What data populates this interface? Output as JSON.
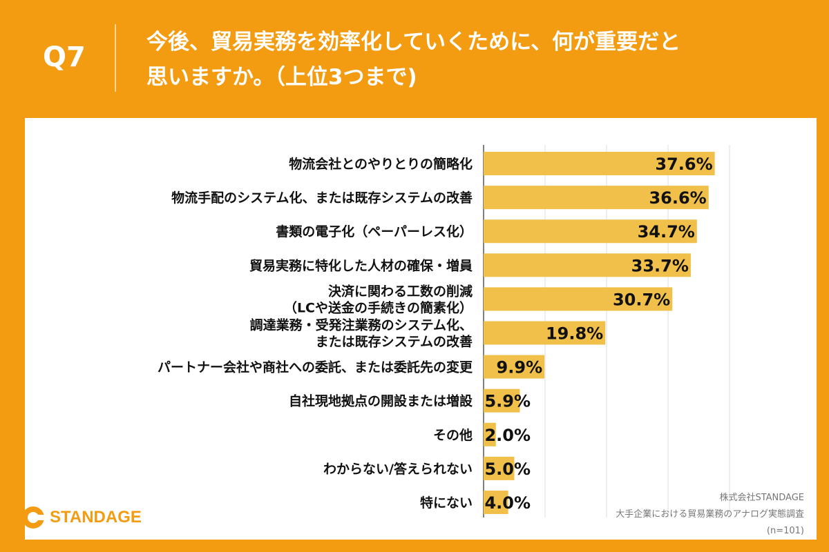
{
  "header": {
    "question_number": "Q7",
    "question_line1": "今後、貿易実務を効率化していくために、何が重要だと",
    "question_line2": "思いますか。（上位3つまで)"
  },
  "chart_data": {
    "type": "bar",
    "orientation": "horizontal",
    "categories": [
      [
        "物流会社とのやりとりの簡略化"
      ],
      [
        "物流手配のシステム化、または既存システムの改善"
      ],
      [
        "書類の電子化（ペーパーレス化）"
      ],
      [
        "貿易実務に特化した人材の確保・増員"
      ],
      [
        "決済に関わる工数の削減",
        "（LCや送金の手続きの簡素化）"
      ],
      [
        "調達業務・受発注業務のシステム化、",
        "または既存システムの改善"
      ],
      [
        "パートナー会社や商社への委託、または委託先の変更"
      ],
      [
        "自社現地拠点の開設または増設"
      ],
      [
        "その他"
      ],
      [
        "わからない/答えられない"
      ],
      [
        "特にない"
      ]
    ],
    "values": [
      37.6,
      36.6,
      34.7,
      33.7,
      30.7,
      19.8,
      9.9,
      5.9,
      2.0,
      5.0,
      4.0
    ],
    "value_labels": [
      "37.6%",
      "36.6%",
      "34.7%",
      "33.7%",
      "30.7%",
      "19.8%",
      "9.9%",
      "5.9%",
      "2.0%",
      "5.0%",
      "4.0%"
    ],
    "xlim": [
      0,
      40
    ],
    "gridlines": [
      0,
      10,
      20,
      30,
      40
    ],
    "bar_color": "#F0C04A",
    "grid_color": "#dddddd"
  },
  "source": {
    "company": "株式会社STANDAGE",
    "survey": "大手企業における貿易業務のアナログ実態調査",
    "n": "(n=101)"
  },
  "logo": {
    "text": "STANDAGE",
    "icon": "standage-logo-icon"
  },
  "colors": {
    "background": "#F39C12",
    "card": "#FFFFFF"
  }
}
